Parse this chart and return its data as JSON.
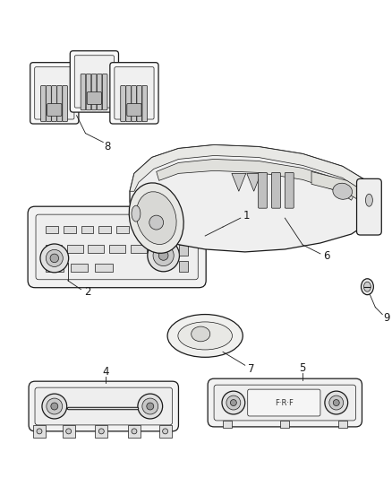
{
  "background_color": "#ffffff",
  "figsize": [
    4.38,
    5.33
  ],
  "dpi": 100,
  "line_color": "#1a1a1a",
  "fill_color": "#ffffff",
  "label_color": "#1a1a1a",
  "label_fontsize": 8.5,
  "gray_light": "#e0e0e0",
  "gray_mid": "#c8c8c8",
  "gray_dark": "#a0a0a0"
}
